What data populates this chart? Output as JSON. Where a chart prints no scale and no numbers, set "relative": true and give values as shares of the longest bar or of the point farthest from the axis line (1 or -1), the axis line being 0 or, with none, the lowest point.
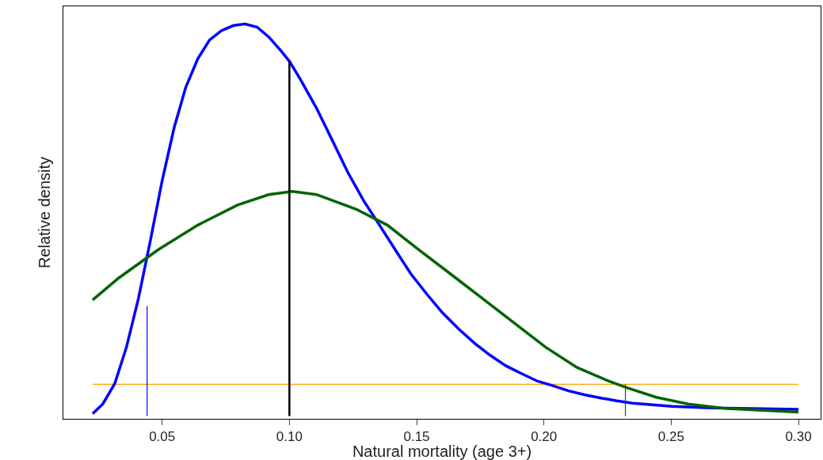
{
  "chart_data": {
    "type": "line",
    "relative": true,
    "xlabel": "Natural mortality (age 3+)",
    "ylabel": "Relative density",
    "xlim": [
      0.0112,
      0.3087
    ],
    "xticks": [
      {
        "value": 0.05,
        "label": "0.05"
      },
      {
        "value": 0.1,
        "label": "0.10"
      },
      {
        "value": 0.15,
        "label": "0.15"
      },
      {
        "value": 0.2,
        "label": "0.20"
      },
      {
        "value": 0.25,
        "label": "0.25"
      },
      {
        "value": 0.3,
        "label": "0.30"
      }
    ],
    "tick_labels": "x",
    "marker": "none",
    "line_style": "solid",
    "series": [
      {
        "color": "#ffa500",
        "x": [
          0.0227,
          0.3
        ],
        "values": [
          0.081,
          0.081
        ]
      },
      {
        "color": "#0000ff",
        "x": [
          0.0227,
          0.0267,
          0.0314,
          0.036,
          0.0407,
          0.0453,
          0.05,
          0.0547,
          0.0593,
          0.064,
          0.0686,
          0.0733,
          0.078,
          0.0826,
          0.0873,
          0.0919,
          0.0966,
          0.1,
          0.1043,
          0.1106,
          0.1168,
          0.123,
          0.1292,
          0.1354,
          0.1416,
          0.1478,
          0.154,
          0.1602,
          0.1665,
          0.1727,
          0.1789,
          0.1851,
          0.1913,
          0.1975,
          0.2037,
          0.2099,
          0.2161,
          0.2224,
          0.2286,
          0.2348,
          0.2503,
          0.2658,
          0.2814,
          0.3
        ],
        "values": [
          0.006,
          0.031,
          0.083,
          0.176,
          0.3,
          0.445,
          0.6,
          0.735,
          0.839,
          0.911,
          0.959,
          0.983,
          0.996,
          1.0,
          0.992,
          0.967,
          0.932,
          0.905,
          0.859,
          0.786,
          0.704,
          0.621,
          0.549,
          0.487,
          0.424,
          0.362,
          0.311,
          0.263,
          0.222,
          0.186,
          0.155,
          0.128,
          0.108,
          0.089,
          0.077,
          0.064,
          0.054,
          0.046,
          0.039,
          0.033,
          0.025,
          0.021,
          0.019,
          0.017
        ]
      },
      {
        "color": "#006400",
        "x": [
          0.0227,
          0.0329,
          0.0484,
          0.064,
          0.0795,
          0.0919,
          0.1012,
          0.1106,
          0.1261,
          0.1385,
          0.1509,
          0.1634,
          0.1758,
          0.1882,
          0.2006,
          0.213,
          0.2255,
          0.2323,
          0.2441,
          0.2565,
          0.272,
          0.3
        ],
        "values": [
          0.296,
          0.352,
          0.424,
          0.487,
          0.538,
          0.565,
          0.573,
          0.565,
          0.528,
          0.487,
          0.424,
          0.362,
          0.3,
          0.238,
          0.176,
          0.124,
          0.089,
          0.073,
          0.048,
          0.031,
          0.019,
          0.01
        ]
      },
      {
        "color": "#0000ff",
        "x": [
          0.0441,
          0.0441
        ],
        "values": [
          0,
          0.28
        ]
      },
      {
        "color": "#000000",
        "x": [
          0.1,
          0.1
        ],
        "values": [
          0,
          0.905
        ]
      },
      {
        "color": "#006400",
        "x": [
          0.232,
          0.232
        ],
        "values": [
          0,
          0.081
        ]
      }
    ]
  }
}
